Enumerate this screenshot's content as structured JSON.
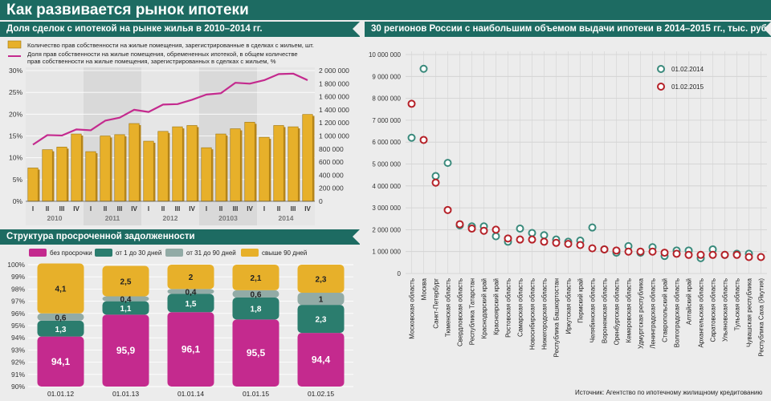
{
  "title": "Как развивается рынок ипотеки",
  "sections": {
    "deals": "Доля сделок с ипотекой на рынке жилья в 2010–2014 гг.",
    "overdue": "Структура просроченной задолженности",
    "regions": "30 регионов России с наибольшим объемом выдачи ипотеки в 2014–2015 гг., тыс. руб."
  },
  "source": "Источник: Агентство по ипотечному жилищному кредитованию",
  "colors": {
    "header": "#1d6b62",
    "bar_gold": "#e7b02a",
    "line_magenta": "#c42a8e",
    "teal": "#2b7d6e",
    "grey_teal": "#92aba6",
    "dot_2014": "#3a8a7c",
    "dot_2015": "#b52128"
  },
  "chart_data": [
    {
      "type": "bar",
      "legend": [
        "Количество прав собственности на жилые помещения, зарегистрированные в сделках с жильем, шт.",
        "Доля прав собственности на жилые помещения, обремененных ипотекой, в общем количестве прав собственности на жилые помещения, зарегистрированных в сделках с жильем, %"
      ],
      "quarters": [
        "I",
        "II",
        "III",
        "IV",
        "I",
        "II",
        "III",
        "IV",
        "I",
        "II",
        "III",
        "IV",
        "I",
        "II",
        "III",
        "IV",
        "I",
        "II",
        "III",
        "IV"
      ],
      "years": [
        "2010",
        "2011",
        "2012",
        "20103",
        "2014"
      ],
      "series": [
        {
          "axis": "right",
          "values": [
            510000,
            790000,
            830000,
            1030000,
            760000,
            1000000,
            1020000,
            1190000,
            920000,
            1070000,
            1140000,
            1160000,
            820000,
            1030000,
            1110000,
            1210000,
            980000,
            1160000,
            1140000,
            1330000
          ]
        },
        {
          "axis": "left",
          "values": [
            13,
            15.2,
            15.1,
            16.5,
            16.3,
            18.5,
            19.2,
            21,
            20.5,
            22.2,
            22.3,
            23.3,
            24.5,
            24.8,
            27.2,
            27.0,
            27.8,
            29.2,
            29.3,
            27.8
          ]
        }
      ],
      "yleft": {
        "ticks": [
          "0%",
          "5%",
          "10%",
          "15%",
          "20%",
          "25%",
          "30%"
        ],
        "range": [
          0,
          30
        ]
      },
      "yright": {
        "ticks": [
          "0",
          "200 000",
          "400 000",
          "600 000",
          "800 000",
          "1 000 000",
          "1 200 000",
          "1 400 000",
          "1 600 000",
          "1 800 000",
          "2 000 000"
        ],
        "range": [
          0,
          2000000
        ]
      }
    },
    {
      "type": "bar",
      "legend": [
        "без просрочки",
        "от 1 до 30 дней",
        "от 31 до 90 дней",
        "свыше 90 дней"
      ],
      "categories": [
        "01.01.12",
        "01.01.13",
        "01.01.14",
        "01.01.15",
        "01.02.15"
      ],
      "series": [
        {
          "name": "без просрочки",
          "values": [
            94.1,
            95.9,
            96.1,
            95.5,
            94.4
          ],
          "labels": [
            "94,1",
            "95,9",
            "96,1",
            "95,5",
            "94,4"
          ]
        },
        {
          "name": "от 1 до 30 дней",
          "values": [
            1.3,
            1.1,
            1.5,
            1.8,
            2.3
          ],
          "labels": [
            "1,3",
            "1,1",
            "1,5",
            "1,8",
            "2,3"
          ]
        },
        {
          "name": "от 31 до 90 дней",
          "values": [
            0.6,
            0.4,
            0.4,
            0.6,
            1
          ],
          "labels": [
            "0,6",
            "0,4",
            "0,4",
            "0,6",
            "1"
          ]
        },
        {
          "name": "свыше 90 дней",
          "values": [
            4.1,
            2.5,
            2,
            2.1,
            2.3
          ],
          "labels": [
            "4,1",
            "2,5",
            "2",
            "2,1",
            "2,3"
          ]
        }
      ],
      "yticks": [
        "90%",
        "91%",
        "92%",
        "93%",
        "94%",
        "95%",
        "96%",
        "97%",
        "98%",
        "99%",
        "100%"
      ],
      "ylim": [
        90,
        100
      ]
    },
    {
      "type": "scatter",
      "legend": [
        "01.02.2014",
        "01.02.2015"
      ],
      "categories": [
        "Московская область",
        "Москва",
        "Санкт-Петербург",
        "Тюменская область",
        "Свердловская область",
        "Республика Татарстан",
        "Краснодарский край",
        "Красноярский край",
        "Ростовская область",
        "Самарская область",
        "Новосибирская область",
        "Нижегородская область",
        "Республика Башкортостан",
        "Иркутская область",
        "Пермский край",
        "Челябинская область",
        "Воронежская область",
        "Оренбургская область",
        "Кемеровская область",
        "Удмуртская республика",
        "Ленинградская область",
        "Ставропольский край",
        "Волгоградская область",
        "Алтайский край",
        "Архангельская область",
        "Саратовская область",
        "Ульяновская область",
        "Тульская область",
        "Чувашская республика",
        "Республика Саха (Якутия)"
      ],
      "series": [
        {
          "name": "01.02.2014",
          "values": [
            6200000,
            9350000,
            4450000,
            5050000,
            2200000,
            2150000,
            2150000,
            1700000,
            1450000,
            2050000,
            1850000,
            1750000,
            1550000,
            1450000,
            1500000,
            2100000,
            1100000,
            950000,
            1250000,
            950000,
            1200000,
            800000,
            1050000,
            1050000,
            700000,
            1100000,
            850000,
            900000,
            900000,
            null
          ]
        },
        {
          "name": "01.02.2015",
          "values": [
            7750000,
            6100000,
            4150000,
            2900000,
            2250000,
            2050000,
            1950000,
            2000000,
            1600000,
            1550000,
            1550000,
            1450000,
            1400000,
            1350000,
            1300000,
            1150000,
            1100000,
            1050000,
            1000000,
            1000000,
            1000000,
            950000,
            900000,
            850000,
            850000,
            850000,
            850000,
            850000,
            750000,
            750000
          ]
        }
      ],
      "yticks": [
        "0",
        "1 000 000",
        "2 000 000",
        "3 000 000",
        "4 000 000",
        "5 000 000",
        "6 000 000",
        "7 000 000",
        "8 000 000",
        "9 000 000",
        "10 000 000"
      ],
      "ylim": [
        0,
        10000000
      ]
    }
  ]
}
